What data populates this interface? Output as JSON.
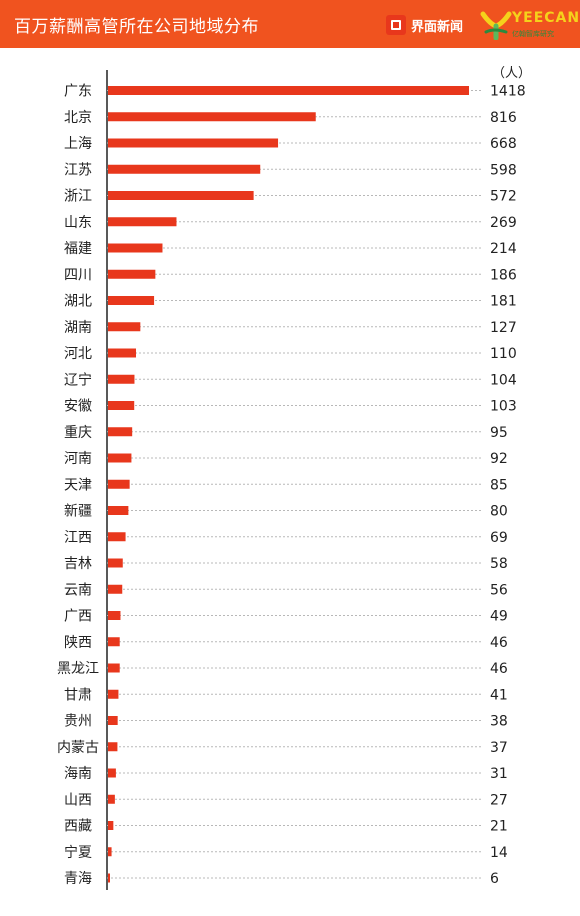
{
  "header": {
    "title": "百万薪酬高管所在公司地域分布",
    "logo_jiemian": "界面新闻",
    "logo_yeecan_word": "YEECAN",
    "logo_yeecan_sub": "亿翰智库研究",
    "colors": {
      "bar_bg": "#f0531f",
      "accent": "#e8371c",
      "yeecan_yellow": "#f5d21b",
      "yeecan_green": "#2b8a3e"
    }
  },
  "chart_data": {
    "type": "bar",
    "orientation": "horizontal",
    "unit_label": "（人）",
    "bar_color": "#e8371c",
    "grid": "dotted horizontal",
    "categories": [
      "广东",
      "北京",
      "上海",
      "江苏",
      "浙江",
      "山东",
      "福建",
      "四川",
      "湖北",
      "湖南",
      "河北",
      "辽宁",
      "安徽",
      "重庆",
      "河南",
      "天津",
      "新疆",
      "江西",
      "吉林",
      "云南",
      "广西",
      "陕西",
      "黑龙江",
      "甘肃",
      "贵州",
      "内蒙古",
      "海南",
      "山西",
      "西藏",
      "宁夏",
      "青海"
    ],
    "values": [
      1418,
      816,
      668,
      598,
      572,
      269,
      214,
      186,
      181,
      127,
      110,
      104,
      103,
      95,
      92,
      85,
      80,
      69,
      58,
      56,
      49,
      46,
      46,
      41,
      38,
      37,
      31,
      27,
      21,
      14,
      6
    ],
    "xlim": [
      0,
      1418
    ]
  }
}
